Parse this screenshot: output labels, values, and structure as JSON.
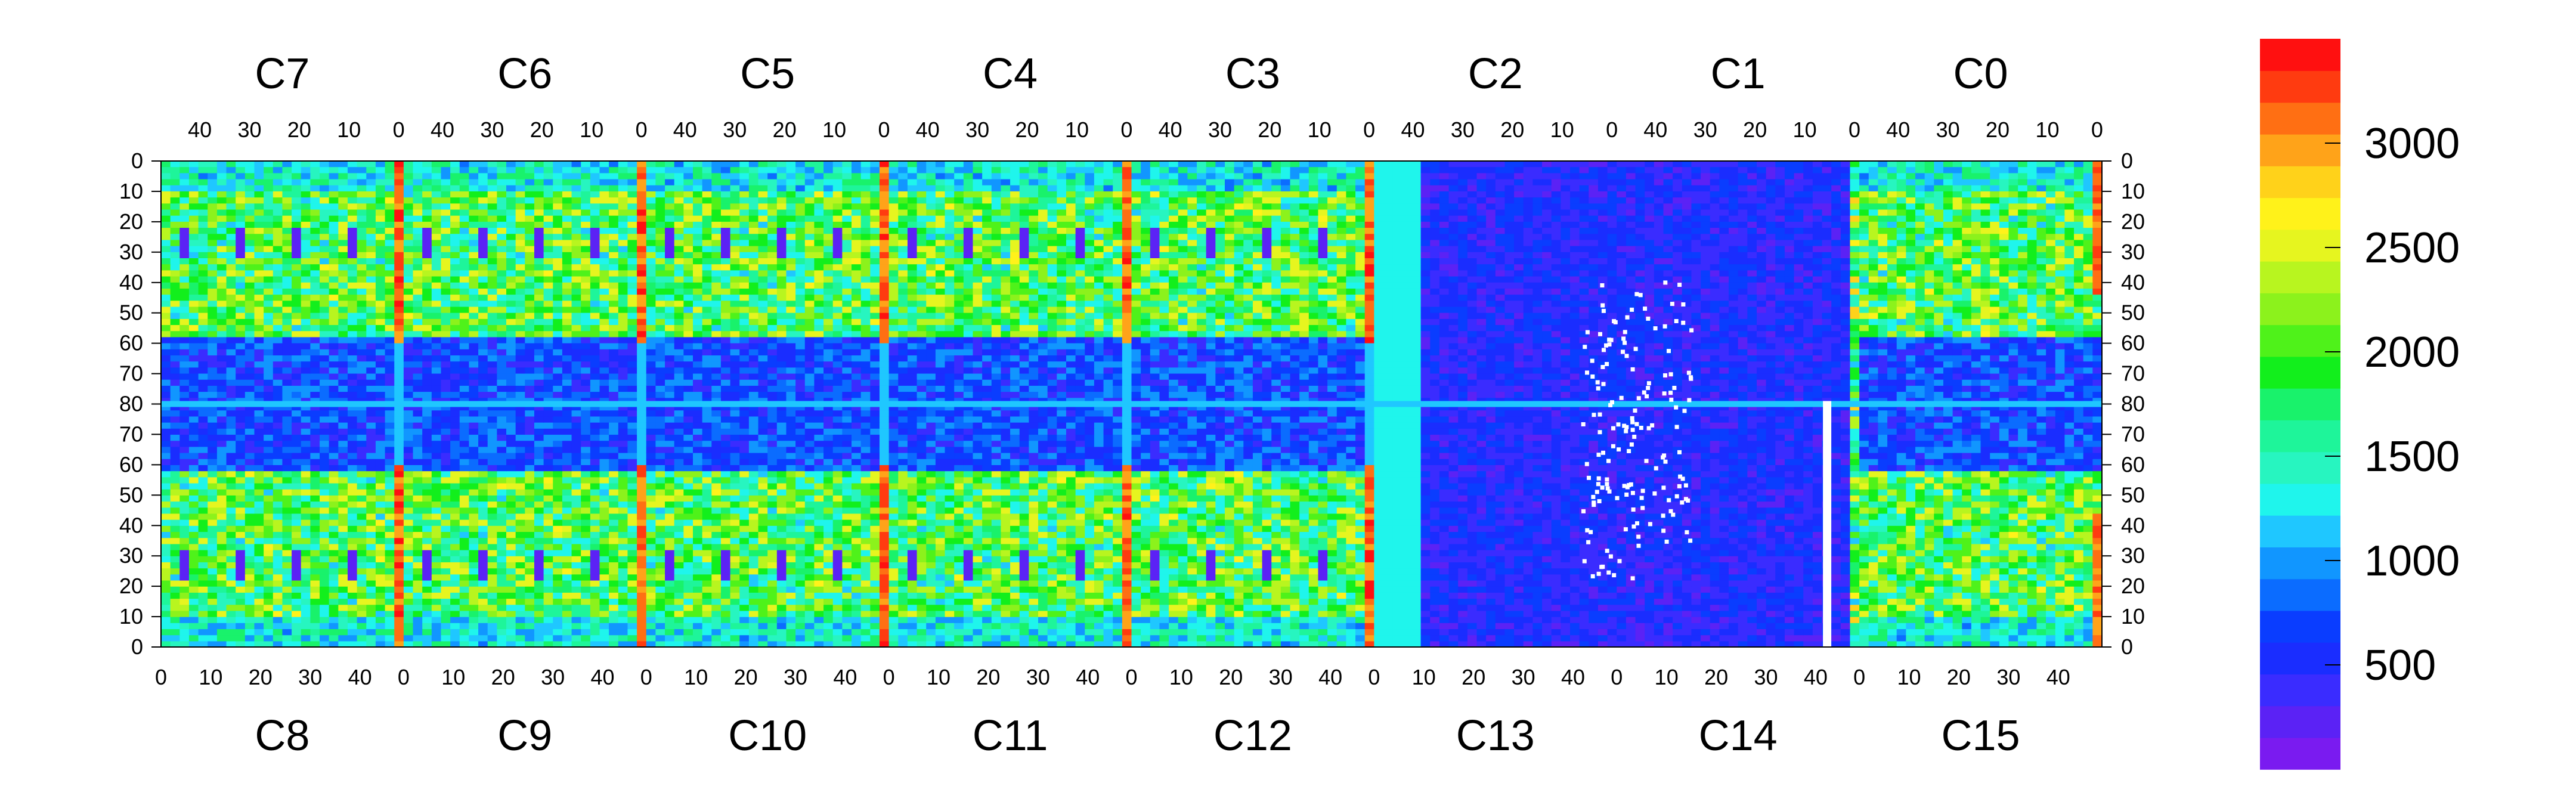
{
  "chart_data": {
    "type": "heatmap",
    "title": "",
    "top_chip_labels": [
      "C7",
      "C6",
      "C5",
      "C4",
      "C3",
      "C2",
      "C1",
      "C0"
    ],
    "bottom_chip_labels": [
      "C8",
      "C9",
      "C10",
      "C11",
      "C12",
      "C13",
      "C14",
      "C15"
    ],
    "top_x_ticks": [
      "40",
      "30",
      "20",
      "10",
      "0"
    ],
    "bottom_x_ticks": [
      "0",
      "10",
      "20",
      "30",
      "40"
    ],
    "y_ticks": [
      "0",
      "10",
      "20",
      "30",
      "40",
      "50",
      "60",
      "70",
      "80",
      "70",
      "60",
      "50",
      "40",
      "30",
      "20",
      "10",
      "0"
    ],
    "chip_columns": 52,
    "chip_rows": 80,
    "zmin": 0,
    "zmax": 3500,
    "colorbar_ticks": [
      "500",
      "1000",
      "1500",
      "2000",
      "2500",
      "3000"
    ],
    "colorbar_tick_values": [
      500,
      1000,
      1500,
      2000,
      2500,
      3000
    ],
    "palette": [
      "#7a1bf0",
      "#5b22f5",
      "#3a2cff",
      "#1a2dff",
      "#0a3dff",
      "#0b6cff",
      "#1196ff",
      "#1fc7ff",
      "#1ff5ec",
      "#27f5c0",
      "#1ef59a",
      "#19f26b",
      "#12ef1c",
      "#4ff21a",
      "#8cf21c",
      "#b8f51f",
      "#e6f51f",
      "#fff21a",
      "#ffd21a",
      "#ffa319",
      "#ff6f13",
      "#ff3b10",
      "#ff1010"
    ],
    "regions": [
      {
        "label": "C7/C8",
        "description": "active, rows 10-60 moderate-high, hot column at chip edge"
      },
      {
        "label": "C13/C14",
        "description": "mostly low occupancy with scattered dead (white) pixels"
      },
      {
        "label": "C14",
        "description": "dead column near x=42 (white)"
      }
    ]
  }
}
